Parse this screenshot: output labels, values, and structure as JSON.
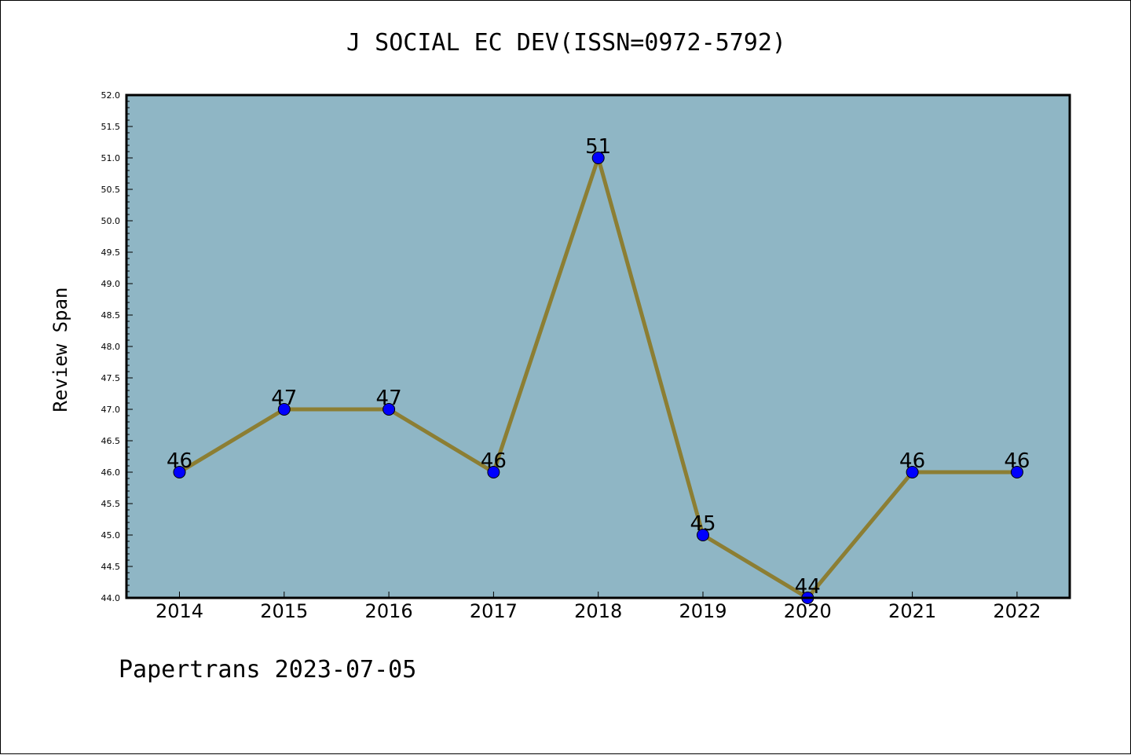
{
  "title": "J SOCIAL EC DEV(ISSN=0972-5792)",
  "footer": "Papertrans 2023-07-05",
  "colors": {
    "plot_background": "#8fb6c5",
    "line": "#8c7e33",
    "marker": "#0000ff"
  },
  "chart_data": {
    "type": "line",
    "title": "J SOCIAL EC DEV(ISSN=0972-5792)",
    "xlabel": "",
    "ylabel": "Review Span",
    "categories": [
      "2014",
      "2015",
      "2016",
      "2017",
      "2018",
      "2019",
      "2020",
      "2021",
      "2022"
    ],
    "series": [
      {
        "values": [
          46,
          47,
          47,
          46,
          51,
          45,
          44,
          46,
          46
        ]
      }
    ],
    "data_labels": [
      "46",
      "47",
      "47",
      "46",
      "51",
      "45",
      "44",
      "46",
      "46"
    ],
    "ylim": [
      44.0,
      52.0
    ],
    "y_ticks": [
      "44.0",
      "44.5",
      "45.0",
      "45.5",
      "46.0",
      "46.5",
      "47.0",
      "47.5",
      "48.0",
      "48.5",
      "49.0",
      "49.5",
      "50.0",
      "50.5",
      "51.0",
      "51.5",
      "52.0"
    ],
    "grid": false,
    "legend": "none"
  }
}
